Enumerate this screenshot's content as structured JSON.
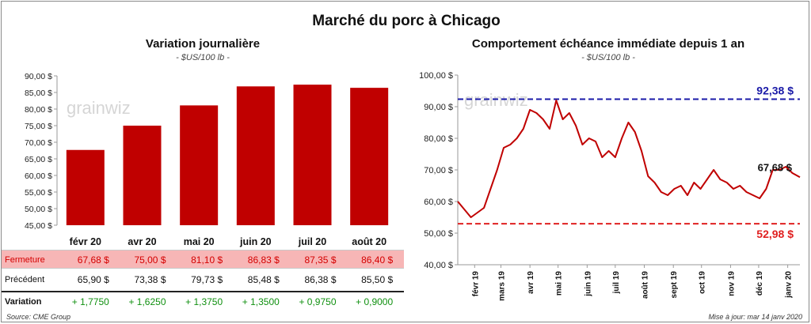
{
  "page": {
    "title": "Marché du porc à Chicago"
  },
  "left": {
    "title": "Variation journalière",
    "unit": "- $US/100 lb -",
    "table": {
      "rows": [
        {
          "label": "Fermeture",
          "values": [
            "67,68 $",
            "75,00 $",
            "81,10 $",
            "86,83 $",
            "87,35 $",
            "86,40 $"
          ]
        },
        {
          "label": "Précédent",
          "values": [
            "65,90 $",
            "73,38 $",
            "79,73 $",
            "85,48 $",
            "86,38 $",
            "85,50 $"
          ]
        },
        {
          "label": "Variation",
          "values": [
            "+ 1,7750",
            "+ 1,6250",
            "+ 1,3750",
            "+ 1,3500",
            "+ 0,9750",
            "+ 0,9000"
          ]
        }
      ]
    }
  },
  "right": {
    "title": "Comportement  échéance immédiate depuis 1 an",
    "unit": "- $US/100 lb -"
  },
  "footer": {
    "source": "Source: CME Group",
    "update": "Mise à jour: mar 14 janv 2020"
  },
  "watermark": "grainwiz",
  "colors": {
    "bar": "#c00000",
    "line": "#c00000",
    "max_line": "#1a1aa8",
    "min_line": "#e02020",
    "gain": "#109010"
  },
  "chart_data": [
    {
      "type": "bar",
      "title": "Variation journalière",
      "categories": [
        "févr 20",
        "avr 20",
        "mai 20",
        "juin 20",
        "juil 20",
        "août 20"
      ],
      "values": [
        67.68,
        75.0,
        81.1,
        86.83,
        87.35,
        86.4
      ],
      "ylim": [
        45,
        90
      ],
      "yticks": [
        45,
        50,
        55,
        60,
        65,
        70,
        75,
        80,
        85,
        90
      ],
      "ytick_labels": [
        "45,00 $",
        "50,00 $",
        "55,00 $",
        "60,00 $",
        "65,00 $",
        "70,00 $",
        "75,00 $",
        "80,00 $",
        "85,00 $",
        "90,00 $"
      ],
      "grid": false
    },
    {
      "type": "line",
      "title": "Comportement  échéance immédiate depuis 1 an",
      "ylim": [
        40,
        100
      ],
      "yticks": [
        40,
        50,
        60,
        70,
        80,
        90,
        100
      ],
      "ytick_labels": [
        "40,00 $",
        "50,00 $",
        "60,00 $",
        "70,00 $",
        "80,00 $",
        "90,00 $",
        "100,00 $"
      ],
      "xlim": [
        "2019-01-14",
        "2020-01-14"
      ],
      "xticks": [
        "2019-02-01",
        "2019-03-01",
        "2019-04-01",
        "2019-05-01",
        "2019-06-01",
        "2019-07-01",
        "2019-08-01",
        "2019-09-01",
        "2019-10-01",
        "2019-11-01",
        "2019-12-01",
        "2020-01-01"
      ],
      "xtick_labels": [
        "févr 19",
        "mars 19",
        "avr 19",
        "mai 19",
        "juin 19",
        "juil 19",
        "août 19",
        "sept 19",
        "oct 19",
        "nov 19",
        "déc 19",
        "janv 20"
      ],
      "x": [
        "2019-01-14",
        "2019-01-21",
        "2019-01-28",
        "2019-02-04",
        "2019-02-11",
        "2019-02-18",
        "2019-02-25",
        "2019-03-04",
        "2019-03-11",
        "2019-03-18",
        "2019-03-25",
        "2019-04-01",
        "2019-04-08",
        "2019-04-15",
        "2019-04-22",
        "2019-04-29",
        "2019-05-06",
        "2019-05-13",
        "2019-05-20",
        "2019-05-27",
        "2019-06-03",
        "2019-06-10",
        "2019-06-17",
        "2019-06-24",
        "2019-07-01",
        "2019-07-08",
        "2019-07-15",
        "2019-07-22",
        "2019-07-29",
        "2019-08-05",
        "2019-08-12",
        "2019-08-19",
        "2019-08-26",
        "2019-09-02",
        "2019-09-09",
        "2019-09-16",
        "2019-09-23",
        "2019-09-30",
        "2019-10-07",
        "2019-10-14",
        "2019-10-21",
        "2019-10-28",
        "2019-11-04",
        "2019-11-11",
        "2019-11-18",
        "2019-11-25",
        "2019-12-02",
        "2019-12-09",
        "2019-12-16",
        "2019-12-23",
        "2019-12-30",
        "2020-01-06",
        "2020-01-14"
      ],
      "values": [
        60.0,
        57.5,
        55.0,
        56.5,
        58.0,
        64.0,
        70.0,
        77.0,
        78.0,
        80.0,
        83.0,
        89.0,
        88.0,
        86.0,
        83.0,
        92.0,
        86.0,
        88.0,
        84.0,
        78.0,
        80.0,
        79.0,
        74.0,
        76.0,
        74.0,
        80.0,
        85.0,
        82.0,
        76.0,
        68.0,
        66.0,
        63.0,
        62.0,
        64.0,
        65.0,
        62.0,
        66.0,
        64.0,
        67.0,
        70.0,
        67.0,
        66.0,
        64.0,
        65.0,
        63.0,
        62.0,
        61.0,
        64.0,
        70.0,
        70.0,
        71.0,
        69.0,
        67.68
      ],
      "annotations": [
        {
          "label": "92,38 $",
          "value": 92.38,
          "kind": "max"
        },
        {
          "label": "52,98 $",
          "value": 52.98,
          "kind": "min"
        },
        {
          "label": "67,68 $",
          "value": 67.68,
          "kind": "last"
        }
      ],
      "grid": false
    }
  ]
}
